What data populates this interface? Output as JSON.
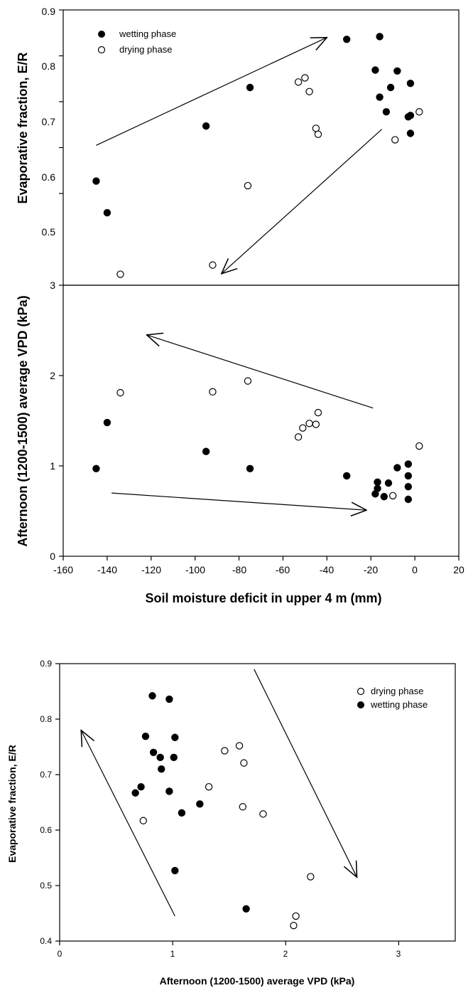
{
  "chart_data": [
    {
      "type": "scatter",
      "ylabel": "Evaporative fraction, E/R",
      "xlim": [
        -160,
        20
      ],
      "ylim": [
        0.3,
        0.9
      ],
      "yticks": [
        "0.5",
        "0.6",
        "0.7",
        "0.8",
        "0.9"
      ],
      "grid": false,
      "legend": "top-left",
      "series": [
        {
          "name": "wetting phase",
          "marker": "filled",
          "points": [
            [
              -145,
              0.527
            ],
            [
              -140,
              0.458
            ],
            [
              -95,
              0.647
            ],
            [
              -75,
              0.731
            ],
            [
              -31,
              0.836
            ],
            [
              -16,
              0.842
            ],
            [
              -18,
              0.769
            ],
            [
              -8,
              0.767
            ],
            [
              -11,
              0.731
            ],
            [
              -16,
              0.71
            ],
            [
              -2,
              0.74
            ],
            [
              -13,
              0.678
            ],
            [
              -2,
              0.67
            ],
            [
              -3,
              0.667
            ],
            [
              -2,
              0.631
            ]
          ]
        },
        {
          "name": "drying phase",
          "marker": "open",
          "points": [
            [
              -134,
              0.324
            ],
            [
              -92,
              0.344
            ],
            [
              -76,
              0.517
            ],
            [
              -53,
              0.743
            ],
            [
              -50,
              0.752
            ],
            [
              -48,
              0.722
            ],
            [
              -45,
              0.642
            ],
            [
              -44,
              0.629
            ],
            [
              -9,
              0.617
            ],
            [
              2,
              0.678
            ]
          ]
        }
      ],
      "arrows": [
        {
          "from": [
            -145,
            0.605
          ],
          "to": [
            -40,
            0.84
          ]
        },
        {
          "from": [
            -15,
            0.64
          ],
          "to": [
            -88,
            0.325
          ]
        }
      ]
    },
    {
      "type": "scatter",
      "ylabel": "Afternoon (1200-1500) average VPD (kPa)",
      "xlabel": "Soil moisture deficit in upper 4 m (mm)",
      "xlim": [
        -160,
        20
      ],
      "ylim": [
        0,
        3
      ],
      "xticks": [
        "-160",
        "-140",
        "-120",
        "-100",
        "-80",
        "-60",
        "-40",
        "-20",
        "0",
        "20"
      ],
      "yticks": [
        "0",
        "1",
        "2",
        "3"
      ],
      "grid": false,
      "series": [
        {
          "name": "wetting phase",
          "marker": "filled",
          "points": [
            [
              -145,
              0.97
            ],
            [
              -140,
              1.48
            ],
            [
              -95,
              1.16
            ],
            [
              -75,
              0.97
            ],
            [
              -31,
              0.89
            ],
            [
              -17,
              0.82
            ],
            [
              -17,
              0.75
            ],
            [
              -14,
              0.66
            ],
            [
              -18,
              0.69
            ],
            [
              -12,
              0.81
            ],
            [
              -8,
              0.98
            ],
            [
              -3,
              1.02
            ],
            [
              -3,
              0.89
            ],
            [
              -3,
              0.77
            ],
            [
              -3,
              0.63
            ]
          ]
        },
        {
          "name": "drying phase",
          "marker": "open",
          "points": [
            [
              -134,
              1.81
            ],
            [
              -92,
              1.82
            ],
            [
              -76,
              1.94
            ],
            [
              -53,
              1.32
            ],
            [
              -51,
              1.42
            ],
            [
              -48,
              1.47
            ],
            [
              -45,
              1.46
            ],
            [
              -44,
              1.59
            ],
            [
              -10,
              0.67
            ],
            [
              2,
              1.22
            ]
          ]
        }
      ],
      "arrows": [
        {
          "from": [
            -19,
            1.64
          ],
          "to": [
            -122,
            2.45
          ]
        },
        {
          "from": [
            -138,
            0.7
          ],
          "to": [
            -22,
            0.51
          ]
        }
      ]
    },
    {
      "type": "scatter",
      "xlabel": "Afternoon (1200-1500) average VPD (kPa)",
      "ylabel": "Evaporative fraction, E/R",
      "xlim": [
        0,
        3.5
      ],
      "ylim": [
        0.4,
        0.9
      ],
      "xticks": [
        "0",
        "1",
        "2",
        "3"
      ],
      "yticks": [
        "0.4",
        "0.5",
        "0.6",
        "0.7",
        "0.8",
        "0.9"
      ],
      "grid": false,
      "legend": "top-right",
      "series": [
        {
          "name": "drying phase",
          "marker": "open",
          "points": [
            [
              0.74,
              0.617
            ],
            [
              1.32,
              0.678
            ],
            [
              1.46,
              0.743
            ],
            [
              1.59,
              0.752
            ],
            [
              1.63,
              0.721
            ],
            [
              1.62,
              0.642
            ],
            [
              1.8,
              0.629
            ],
            [
              2.22,
              0.516
            ],
            [
              2.09,
              0.445
            ],
            [
              2.07,
              0.428
            ]
          ]
        },
        {
          "name": "wetting phase",
          "marker": "filled",
          "points": [
            [
              0.82,
              0.842
            ],
            [
              0.97,
              0.836
            ],
            [
              0.76,
              0.769
            ],
            [
              1.02,
              0.767
            ],
            [
              0.83,
              0.74
            ],
            [
              0.89,
              0.731
            ],
            [
              1.01,
              0.731
            ],
            [
              0.9,
              0.71
            ],
            [
              0.72,
              0.678
            ],
            [
              0.67,
              0.667
            ],
            [
              0.97,
              0.67
            ],
            [
              1.08,
              0.631
            ],
            [
              1.24,
              0.647
            ],
            [
              1.02,
              0.527
            ],
            [
              1.65,
              0.458
            ]
          ]
        }
      ],
      "arrows": [
        {
          "from": [
            1.02,
            0.445
          ],
          "to": [
            0.19,
            0.78
          ]
        },
        {
          "from": [
            1.72,
            0.89
          ],
          "to": [
            2.63,
            0.515
          ]
        }
      ]
    }
  ]
}
